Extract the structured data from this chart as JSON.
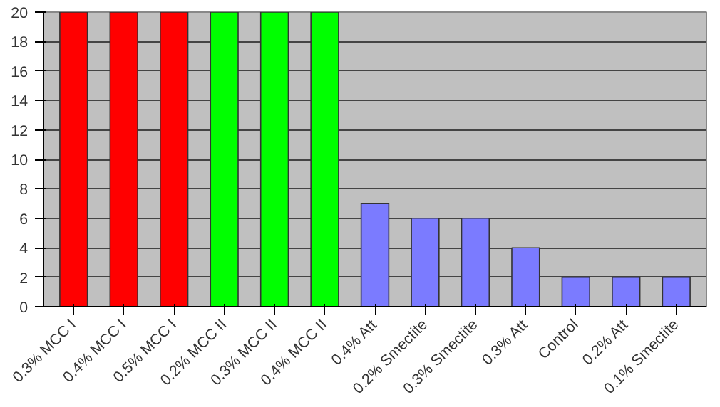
{
  "chart_data": {
    "type": "bar",
    "categories": [
      "0.3% MCC I",
      "0.4% MCC I",
      "0.5% MCC I",
      "0.2% MCC II",
      "0.3% MCC II",
      "0.4% MCC II",
      "0.4% Att",
      "0.2% Smectite",
      "0.3% Smectite",
      "0.3% Att",
      "Control",
      "0.2% Att",
      "0.1% Smectite"
    ],
    "values": [
      20,
      20,
      20,
      20,
      20,
      20,
      7,
      6,
      6,
      4,
      2,
      2,
      2
    ],
    "colors": [
      "#ff0000",
      "#ff0000",
      "#ff0000",
      "#00ff00",
      "#00ff00",
      "#00ff00",
      "#7b7bff",
      "#7b7bff",
      "#7b7bff",
      "#7b7bff",
      "#7b7bff",
      "#7b7bff",
      "#7b7bff"
    ],
    "ylim": [
      0,
      20
    ],
    "yticks": [
      0,
      2,
      4,
      6,
      8,
      10,
      12,
      14,
      16,
      18,
      20
    ],
    "grid": "y"
  }
}
